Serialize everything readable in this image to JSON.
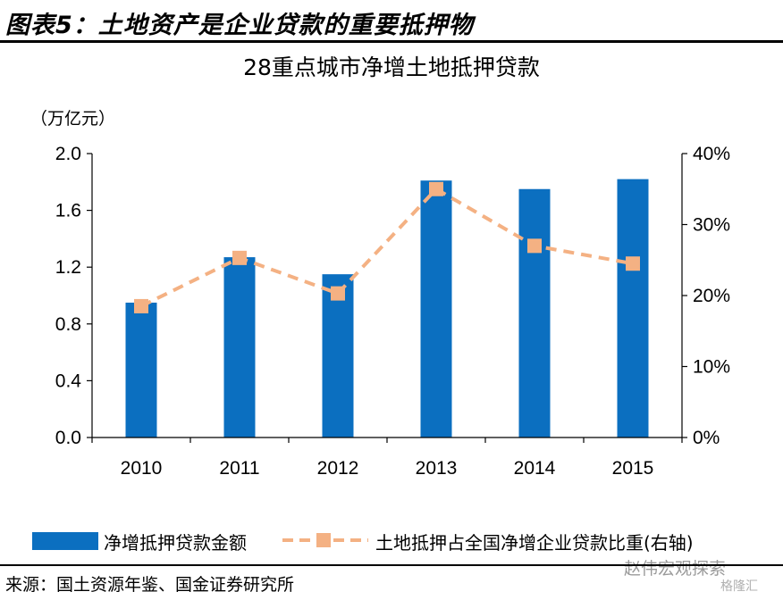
{
  "figure_title": "图表5：土地资产是企业贷款的重要抵押物",
  "unit_label": "（万亿元）",
  "source": "来源：国土资源年鉴、国金证券研究所",
  "watermark": "赵伟宏观探索",
  "watermark_sub": "格隆汇",
  "colors": {
    "bar": "#0b6fc0",
    "line": "#f4b183"
  },
  "chart_data": {
    "type": "bar",
    "title": "28重点城市净增土地抵押贷款",
    "categories": [
      "2010",
      "2011",
      "2012",
      "2013",
      "2014",
      "2015"
    ],
    "series": [
      {
        "name": "净增抵押贷款金额",
        "type": "bar",
        "axis": "left",
        "values": [
          0.95,
          1.27,
          1.15,
          1.81,
          1.75,
          1.82
        ]
      },
      {
        "name": "土地抵押占全国净增企业贷款比重(右轴)",
        "type": "line",
        "axis": "right",
        "style": "dashed",
        "marker": "square",
        "values": [
          18.5,
          25.3,
          20.3,
          35.0,
          27.0,
          24.5
        ]
      }
    ],
    "y_left": {
      "min": 0,
      "max": 2.0,
      "ticks": [
        0.0,
        0.4,
        0.8,
        1.2,
        1.6,
        2.0
      ],
      "tick_labels": [
        "0.0",
        "0.4",
        "0.8",
        "1.2",
        "1.6",
        "2.0"
      ]
    },
    "y_right": {
      "min": 0,
      "max": 40,
      "ticks": [
        0,
        10,
        20,
        30,
        40
      ],
      "tick_labels": [
        "0%",
        "10%",
        "20%",
        "30%",
        "40%"
      ]
    },
    "grid": false,
    "legend_position": "bottom"
  }
}
